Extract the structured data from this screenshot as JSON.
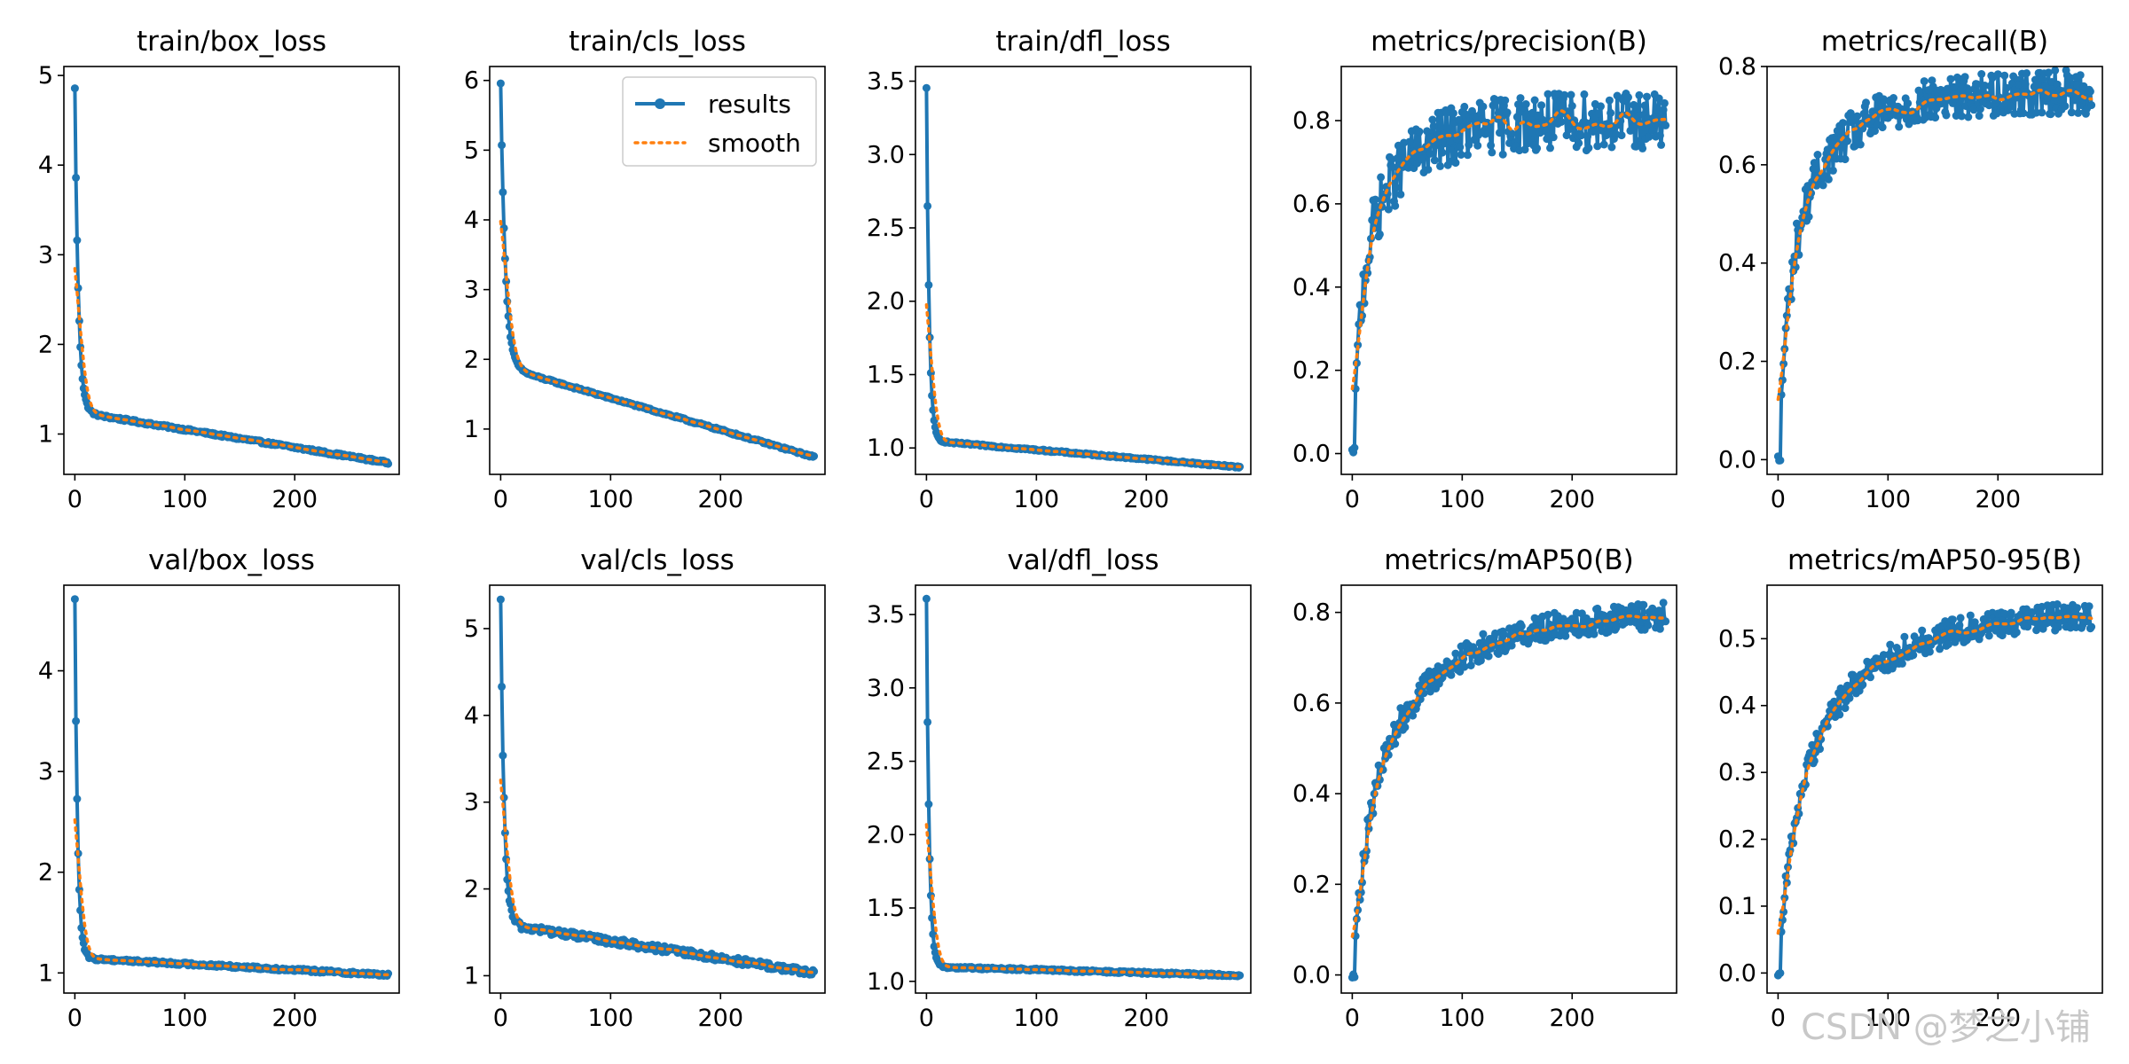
{
  "colors": {
    "results": "#1f77b4",
    "smooth": "#ff7f0e"
  },
  "watermark": "CSDN @梦之小铺",
  "chart_data": [
    {
      "id": "train_box_loss",
      "type": "line",
      "title": "train/box_loss",
      "x_max": 285,
      "xticks": [
        0,
        100,
        200
      ],
      "ylim": [
        0.55,
        5.1
      ],
      "yticks": [
        1,
        2,
        3,
        4,
        5
      ],
      "ytick_labels": [
        "1",
        "2",
        "3",
        "4",
        "5"
      ],
      "shape": "loss",
      "start": 4.85,
      "settle": 1.25,
      "end": 0.68,
      "k": 9,
      "noise": 0.015,
      "legend": false
    },
    {
      "id": "train_cls_loss",
      "type": "line",
      "title": "train/cls_loss",
      "x_max": 285,
      "xticks": [
        0,
        100,
        200
      ],
      "ylim": [
        0.35,
        6.2
      ],
      "yticks": [
        1,
        2,
        3,
        4,
        5,
        6
      ],
      "ytick_labels": [
        "1",
        "2",
        "3",
        "4",
        "5",
        "6"
      ],
      "shape": "loss",
      "start": 5.95,
      "settle": 1.9,
      "end": 0.6,
      "k": 12,
      "noise": 0.015,
      "legend": true,
      "legend_labels": [
        "results",
        "smooth"
      ]
    },
    {
      "id": "train_dfl_loss",
      "type": "line",
      "title": "train/dfl_loss",
      "x_max": 285,
      "xticks": [
        0,
        100,
        200
      ],
      "ylim": [
        0.82,
        3.6
      ],
      "yticks": [
        1.0,
        1.5,
        2.0,
        2.5,
        3.0,
        3.5
      ],
      "ytick_labels": [
        "1.0",
        "1.5",
        "2.0",
        "2.5",
        "3.0",
        "3.5"
      ],
      "shape": "loss",
      "start": 3.45,
      "settle": 1.05,
      "end": 0.87,
      "k": 7,
      "noise": 0.006,
      "legend": false
    },
    {
      "id": "metrics_precision",
      "type": "line",
      "title": "metrics/precision(B)",
      "x_max": 285,
      "xticks": [
        0,
        100,
        200
      ],
      "ylim": [
        -0.05,
        0.93
      ],
      "yticks": [
        0.0,
        0.2,
        0.4,
        0.6,
        0.8
      ],
      "ytick_labels": [
        "0.0",
        "0.2",
        "0.4",
        "0.6",
        "0.8"
      ],
      "shape": "metric",
      "start": 0.0,
      "settle": 0.45,
      "end": 0.8,
      "k": 8,
      "noise": 0.07,
      "legend": false
    },
    {
      "id": "metrics_recall",
      "type": "line",
      "title": "metrics/recall(B)",
      "x_max": 285,
      "xticks": [
        0,
        100,
        200
      ],
      "ylim": [
        -0.03,
        0.8
      ],
      "yticks": [
        0.0,
        0.2,
        0.4,
        0.6,
        0.8
      ],
      "ytick_labels": [
        "0.0",
        "0.2",
        "0.4",
        "0.6",
        "0.8"
      ],
      "shape": "metric",
      "start": 0.0,
      "settle": 0.42,
      "end": 0.75,
      "k": 10,
      "noise": 0.045,
      "legend": false
    },
    {
      "id": "val_box_loss",
      "type": "line",
      "title": "val/box_loss",
      "x_max": 285,
      "xticks": [
        0,
        100,
        200
      ],
      "ylim": [
        0.8,
        4.85
      ],
      "yticks": [
        1,
        2,
        3,
        4
      ],
      "ytick_labels": [
        "1",
        "2",
        "3",
        "4"
      ],
      "shape": "loss",
      "start": 4.7,
      "settle": 1.15,
      "end": 0.98,
      "k": 7,
      "noise": 0.015,
      "legend": false
    },
    {
      "id": "val_cls_loss",
      "type": "line",
      "title": "val/cls_loss",
      "x_max": 285,
      "xticks": [
        0,
        100,
        200
      ],
      "ylim": [
        0.8,
        5.5
      ],
      "yticks": [
        1,
        2,
        3,
        4,
        5
      ],
      "ytick_labels": [
        "1",
        "2",
        "3",
        "4",
        "5"
      ],
      "shape": "loss",
      "start": 5.3,
      "settle": 1.6,
      "end": 1.03,
      "k": 9,
      "noise": 0.04,
      "legend": false
    },
    {
      "id": "val_dfl_loss",
      "type": "line",
      "title": "val/dfl_loss",
      "x_max": 285,
      "xticks": [
        0,
        100,
        200
      ],
      "ylim": [
        0.92,
        3.7
      ],
      "yticks": [
        1.0,
        1.5,
        2.0,
        2.5,
        3.0,
        3.5
      ],
      "ytick_labels": [
        "1.0",
        "1.5",
        "2.0",
        "2.5",
        "3.0",
        "3.5"
      ],
      "shape": "loss",
      "start": 3.6,
      "settle": 1.1,
      "end": 1.04,
      "k": 7,
      "noise": 0.008,
      "legend": false
    },
    {
      "id": "metrics_map50",
      "type": "line",
      "title": "metrics/mAP50(B)",
      "x_max": 285,
      "xticks": [
        0,
        100,
        200
      ],
      "ylim": [
        -0.04,
        0.86
      ],
      "yticks": [
        0.0,
        0.2,
        0.4,
        0.6,
        0.8
      ],
      "ytick_labels": [
        "0.0",
        "0.2",
        "0.4",
        "0.6",
        "0.8"
      ],
      "shape": "metric",
      "start": 0.0,
      "settle": 0.38,
      "end": 0.8,
      "k": 14,
      "noise": 0.03,
      "legend": false
    },
    {
      "id": "metrics_map50_95",
      "type": "line",
      "title": "metrics/mAP50-95(B)",
      "x_max": 285,
      "xticks": [
        0,
        100,
        200
      ],
      "ylim": [
        -0.03,
        0.58
      ],
      "yticks": [
        0.0,
        0.1,
        0.2,
        0.3,
        0.4,
        0.5
      ],
      "ytick_labels": [
        "0.0",
        "0.1",
        "0.2",
        "0.3",
        "0.4",
        "0.5"
      ],
      "shape": "metric",
      "start": 0.0,
      "settle": 0.25,
      "end": 0.54,
      "k": 14,
      "noise": 0.02,
      "legend": false
    }
  ]
}
